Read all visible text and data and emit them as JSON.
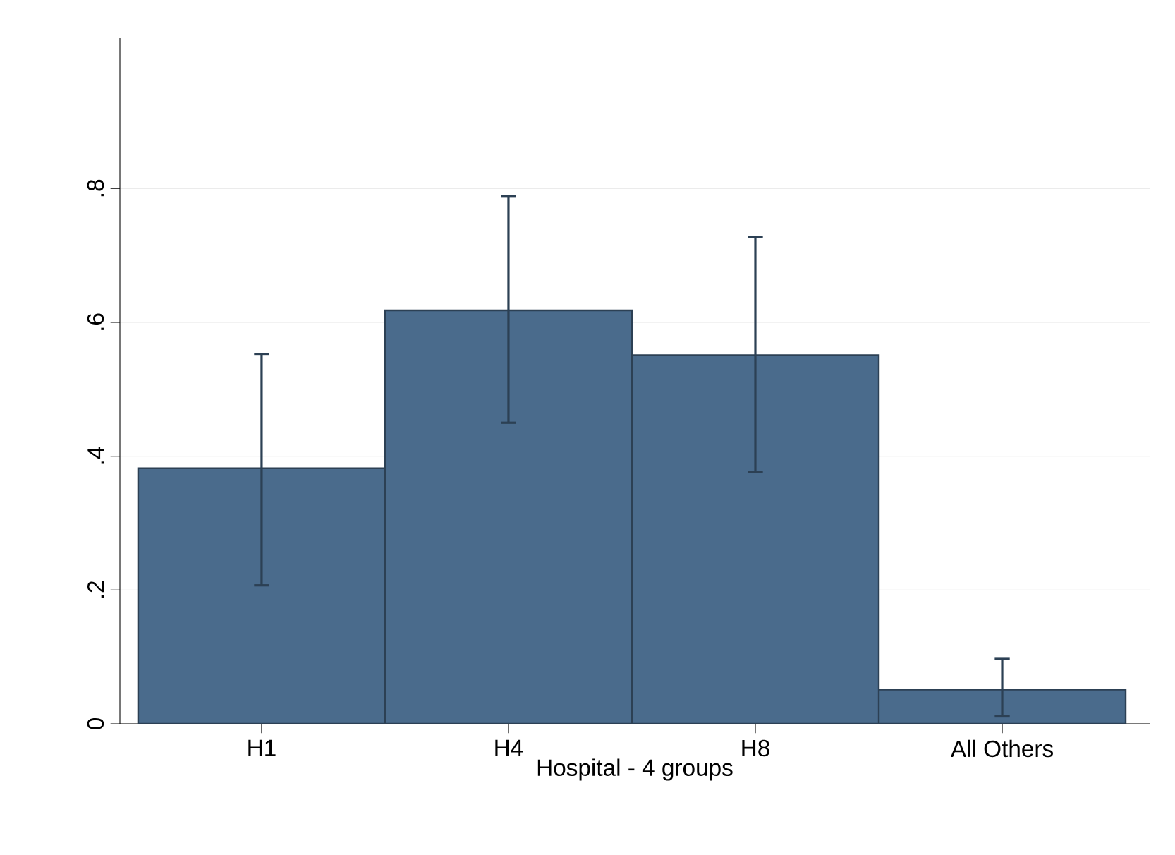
{
  "chart_data": {
    "type": "bar",
    "xlabel": "Hospital - 4 groups",
    "categories": [
      "H1",
      "H4",
      "H8",
      "All Others"
    ],
    "values": [
      0.382,
      0.618,
      0.551,
      0.051
    ],
    "errors": [
      [
        0.207,
        0.553
      ],
      [
        0.45,
        0.789
      ],
      [
        0.376,
        0.728
      ],
      [
        0.011,
        0.097
      ]
    ],
    "color": "#4a6b8c",
    "ylim": [
      0,
      1.025
    ],
    "yticks": [
      0,
      {
        "value": 0.2,
        "label": ".2"
      },
      {
        "value": 0.4,
        "label": ".4"
      },
      {
        "value": 0.6,
        "label": ".6"
      },
      {
        "value": 0.8,
        "label": ".8"
      }
    ],
    "grid": "y"
  }
}
